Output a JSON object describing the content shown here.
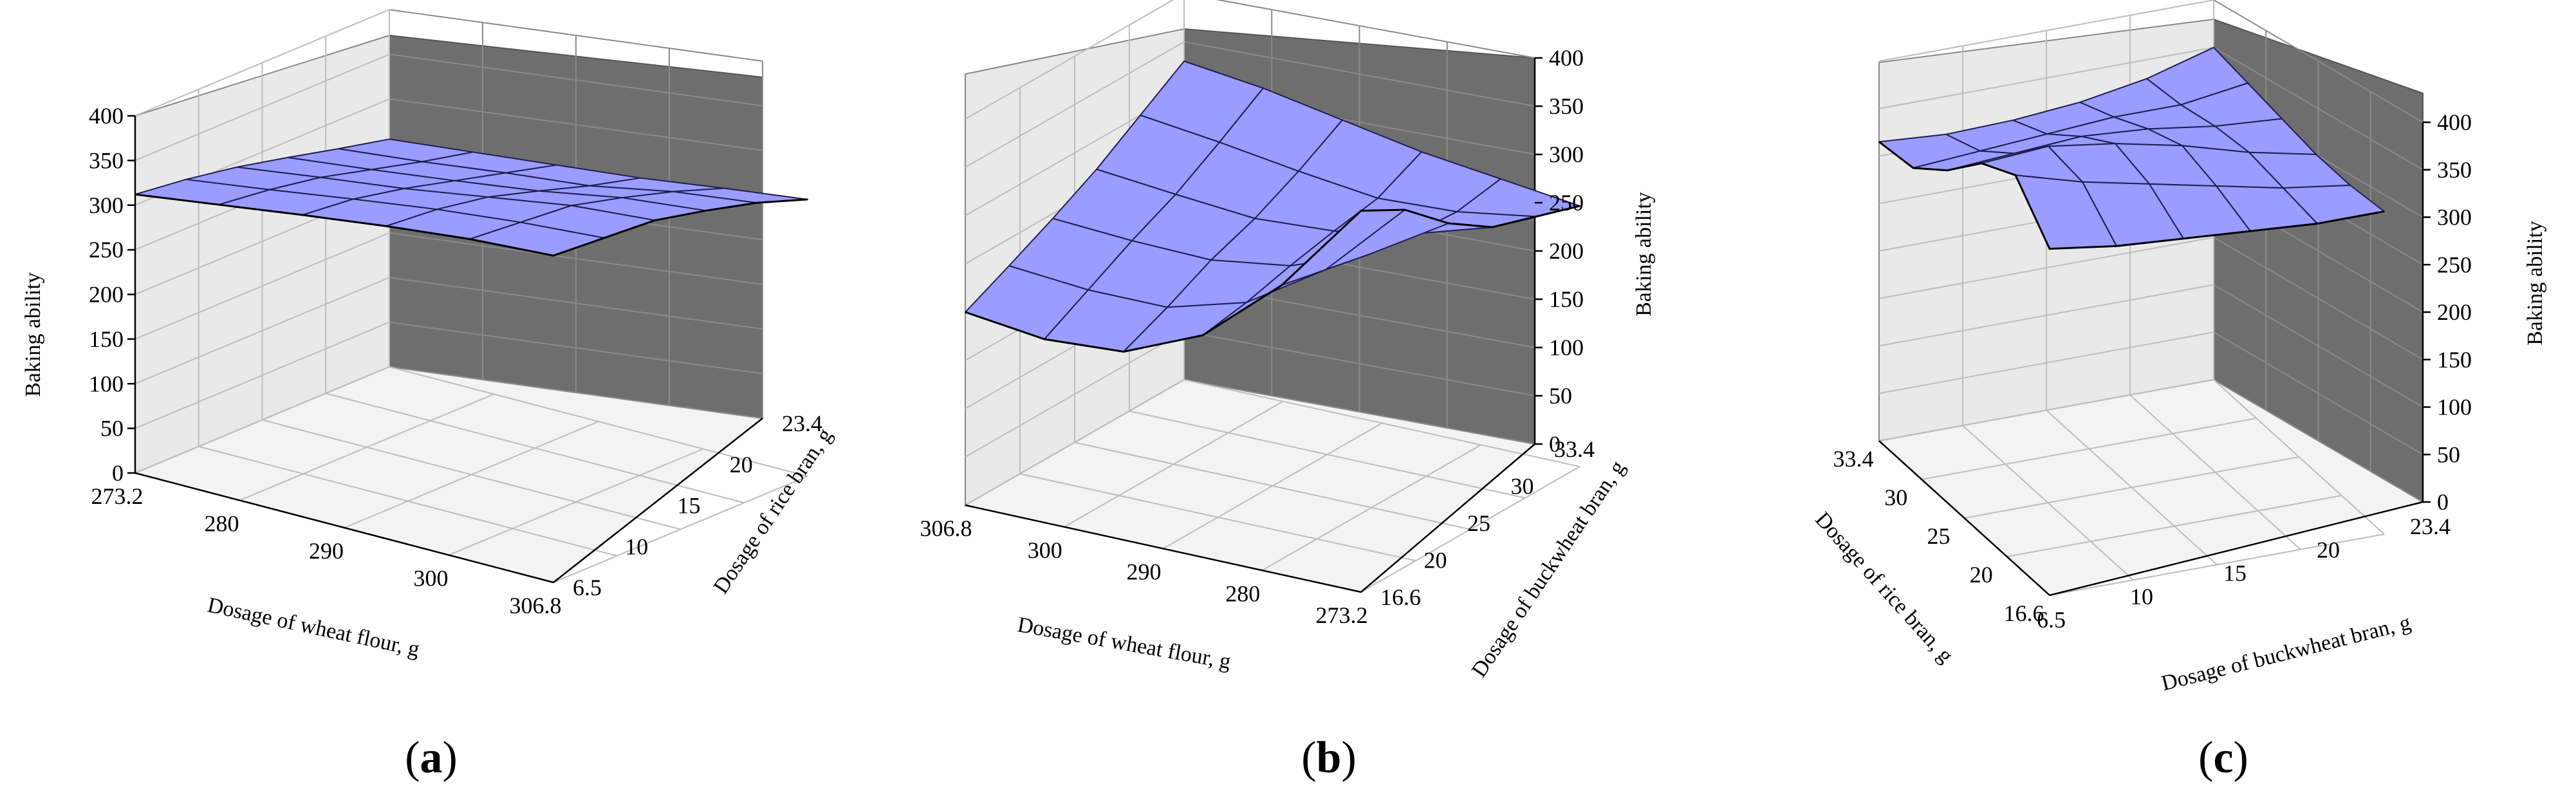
{
  "chart_data": [
    {
      "type": "surface3d",
      "panel_label": "a",
      "zlabel": "Baking ability",
      "xlabel": "Dosage of wheat flour, g",
      "ylabel": "Dosage of rice bran, g",
      "x_ticks": [
        "273.2",
        "280",
        "290",
        "300",
        "306.8"
      ],
      "y_ticks": [
        "6.5",
        "10",
        "15",
        "20",
        "23.4"
      ],
      "z_ticks": [
        "0",
        "50",
        "100",
        "150",
        "200",
        "250",
        "300",
        "350",
        "400"
      ],
      "zlim": [
        0,
        400
      ],
      "z_grid": [
        [
          255,
          265,
          275,
          285,
          298,
          310
        ],
        [
          268,
          278,
          290,
          300,
          318,
          330
        ],
        [
          282,
          293,
          305,
          318,
          335,
          345
        ],
        [
          295,
          308,
          320,
          335,
          350,
          358
        ],
        [
          305,
          318,
          332,
          345,
          355,
          362
        ],
        [
          312,
          325,
          338,
          350,
          360,
          366
        ]
      ]
    },
    {
      "type": "surface3d",
      "panel_label": "b",
      "zlabel": "Baking ability",
      "xlabel": "Dosage of wheat flour, g",
      "ylabel": "Dosage of buckwheat bran, g",
      "x_ticks": [
        "306.8",
        "300",
        "290",
        "280",
        "273.2"
      ],
      "y_ticks": [
        "16.6",
        "20",
        "25",
        "30",
        "33.4"
      ],
      "z_ticks": [
        "0",
        "50",
        "100",
        "150",
        "200",
        "250",
        "300",
        "350",
        "400"
      ],
      "zlim": [
        0,
        400
      ],
      "z_grid": [
        [
          330,
          320,
          305,
          290,
          280,
          270
        ],
        [
          300,
          290,
          278,
          268,
          272,
          285
        ],
        [
          270,
          262,
          255,
          260,
          275,
          300
        ],
        [
          245,
          240,
          238,
          250,
          280,
          330
        ],
        [
          222,
          215,
          215,
          238,
          290,
          370
        ],
        [
          200,
          190,
          195,
          230,
          300,
          395
        ]
      ]
    },
    {
      "type": "surface3d",
      "panel_label": "c",
      "zlabel": "Baking ability",
      "xlabel": "Dosage of buckwheat bran, g",
      "ylabel": "Dosage of rice bran, g",
      "x_ticks": [
        "33.4",
        "30",
        "25",
        "20",
        "16.6"
      ],
      "y_ticks": [
        "6.5",
        "10",
        "15",
        "20",
        "23.4"
      ],
      "z_ticks": [
        "0",
        "50",
        "100",
        "150",
        "200",
        "250",
        "300",
        "350",
        "400"
      ],
      "zlim": [
        0,
        400
      ],
      "z_grid": [
        [
          350,
          345,
          340,
          335,
          335,
          340
        ],
        [
          330,
          335,
          345,
          350,
          345,
          340
        ],
        [
          318,
          335,
          355,
          370,
          360,
          345
        ],
        [
          312,
          330,
          360,
          385,
          375,
          350
        ],
        [
          310,
          325,
          355,
          395,
          390,
          355
        ],
        [
          315,
          320,
          350,
          390,
          410,
          365
        ]
      ]
    }
  ]
}
